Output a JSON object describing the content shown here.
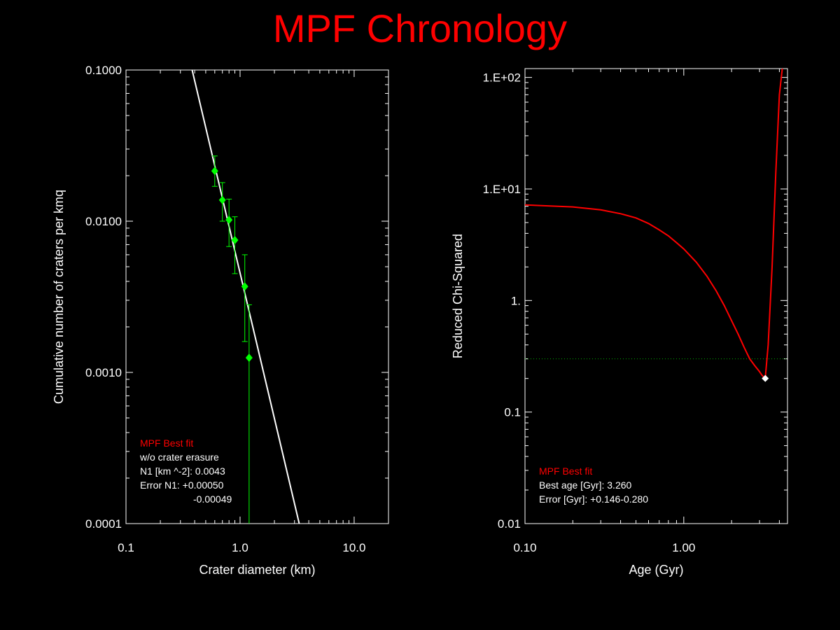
{
  "title": "MPF Chronology",
  "colors": {
    "background": "#000000",
    "title": "#ff0000",
    "axes": "#ffffff",
    "points": "#00ff00",
    "fit_line": "#ffffff",
    "chi_curve": "#ff0000",
    "threshold": "#00aa00",
    "best_point": "#ffffff"
  },
  "chart_data": [
    {
      "type": "scatter",
      "xlabel": "Crater diameter (km)",
      "ylabel": "Cumulative number of craters per kmq",
      "xscale": "log",
      "yscale": "log",
      "xlim": [
        0.1,
        20
      ],
      "ylim": [
        0.0001,
        0.1
      ],
      "xticks": [
        0.1,
        1.0,
        10.0
      ],
      "xtick_labels": [
        "0.1",
        "1.0",
        "10.0"
      ],
      "yticks": [
        0.0001,
        0.001,
        0.01,
        0.1
      ],
      "ytick_labels": [
        "0.0001",
        "0.0010",
        "0.0100",
        "0.1000"
      ],
      "points": {
        "x": [
          0.6,
          0.7,
          0.8,
          0.9,
          1.1,
          1.2
        ],
        "y": [
          0.0215,
          0.0138,
          0.0102,
          0.0075,
          0.0037,
          0.00125
        ],
        "err_hi": [
          0.027,
          0.018,
          0.014,
          0.0107,
          0.006,
          0.0028
        ],
        "err_lo": [
          0.017,
          0.01,
          0.0068,
          0.0045,
          0.0016,
          0.0001
        ]
      },
      "fit_line": {
        "x": [
          0.38,
          3.3
        ],
        "y": [
          0.1,
          0.0001
        ]
      },
      "annotation": {
        "heading": "MPF Best fit",
        "lines": [
          "w/o crater erasure",
          "N1 [km ^-2]: 0.0043",
          "Error N1: +0.00050",
          "-0.00049"
        ]
      }
    },
    {
      "type": "line",
      "xlabel": "Age (Gyr)",
      "ylabel": "Reduced Chi-Squared",
      "xscale": "log",
      "yscale": "log",
      "xlim": [
        0.1,
        4.5
      ],
      "ylim": [
        0.01,
        120
      ],
      "xticks": [
        0.1,
        1.0
      ],
      "xtick_labels": [
        "0.10",
        "1.00"
      ],
      "yticks": [
        0.01,
        0.1,
        1,
        10,
        100
      ],
      "ytick_labels": [
        "0.01",
        "0.1",
        "1.",
        "1.E+01",
        "1.E+02"
      ],
      "series": [
        {
          "x": [
            0.1,
            0.2,
            0.3,
            0.4,
            0.5,
            0.6,
            0.7,
            0.8,
            0.9,
            1.0,
            1.2,
            1.4,
            1.6,
            1.8,
            2.0,
            2.2,
            2.4,
            2.6,
            2.8,
            3.0,
            3.1,
            3.2,
            3.26,
            3.4,
            3.6,
            3.8,
            4.0,
            4.2
          ],
          "y": [
            7.2,
            6.9,
            6.5,
            6.0,
            5.5,
            4.9,
            4.3,
            3.8,
            3.3,
            2.9,
            2.2,
            1.65,
            1.22,
            0.9,
            0.66,
            0.5,
            0.38,
            0.3,
            0.26,
            0.23,
            0.215,
            0.205,
            0.2,
            0.4,
            2.0,
            14,
            70,
            130
          ]
        }
      ],
      "threshold": 0.3,
      "best_point": {
        "x": 3.26,
        "y": 0.2
      },
      "annotation": {
        "heading": "MPF Best fit",
        "lines": [
          "Best age [Gyr]: 3.260",
          "Error [Gyr]: +0.146-0.280"
        ]
      }
    }
  ]
}
